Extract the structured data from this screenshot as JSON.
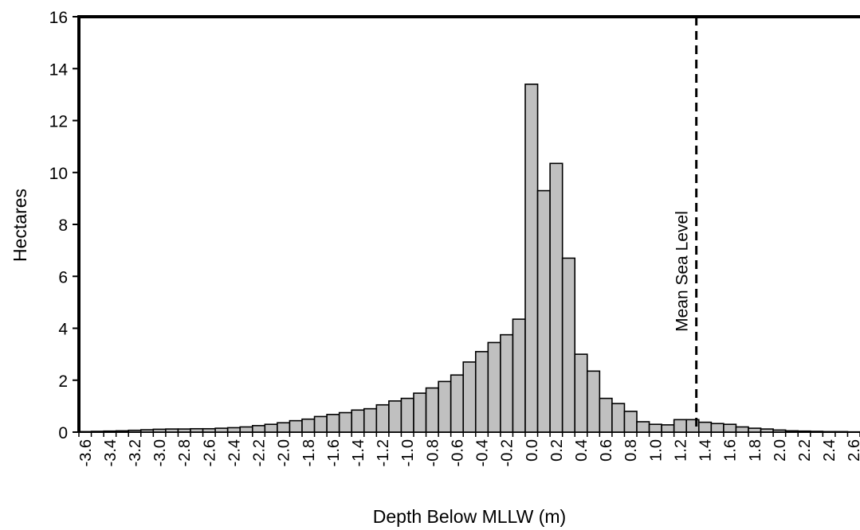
{
  "chart_data": {
    "type": "bar",
    "title": "",
    "xlabel": "Depth Below MLLW (m)",
    "ylabel": "Hectares",
    "ylim": [
      0,
      16
    ],
    "yticks": [
      0,
      2,
      4,
      6,
      8,
      10,
      12,
      14,
      16
    ],
    "grid": false,
    "bar_color": "#c0c0c0",
    "categories": [
      -3.6,
      -3.5,
      -3.4,
      -3.3,
      -3.2,
      -3.1,
      -3.0,
      -2.9,
      -2.8,
      -2.7,
      -2.6,
      -2.5,
      -2.4,
      -2.3,
      -2.2,
      -2.1,
      -2.0,
      -1.9,
      -1.8,
      -1.7,
      -1.6,
      -1.5,
      -1.4,
      -1.3,
      -1.2,
      -1.1,
      -1.0,
      -0.9,
      -0.8,
      -0.7,
      -0.6,
      -0.5,
      -0.4,
      -0.3,
      -0.2,
      -0.1,
      0.0,
      0.1,
      0.2,
      0.3,
      0.4,
      0.5,
      0.6,
      0.7,
      0.8,
      0.9,
      1.0,
      1.1,
      1.2,
      1.3,
      1.4,
      1.5,
      1.6,
      1.7,
      1.8,
      1.9,
      2.0,
      2.1,
      2.2,
      2.3,
      2.4,
      2.5,
      2.6
    ],
    "values": [
      0.02,
      0.03,
      0.04,
      0.05,
      0.07,
      0.09,
      0.11,
      0.12,
      0.12,
      0.13,
      0.13,
      0.15,
      0.17,
      0.2,
      0.25,
      0.3,
      0.36,
      0.44,
      0.5,
      0.6,
      0.68,
      0.75,
      0.85,
      0.9,
      1.05,
      1.2,
      1.3,
      1.5,
      1.7,
      1.95,
      2.2,
      2.7,
      3.1,
      3.45,
      3.75,
      4.35,
      13.4,
      9.3,
      10.35,
      6.7,
      3.0,
      2.35,
      1.3,
      1.1,
      0.8,
      0.4,
      0.3,
      0.28,
      0.48,
      0.48,
      0.38,
      0.33,
      0.3,
      0.2,
      0.15,
      0.12,
      0.08,
      0.05,
      0.04,
      0.03,
      0.02,
      0.02,
      0.01
    ],
    "xtick_labels": [
      "-3.6",
      "-3.4",
      "-3.2",
      "-3.0",
      "-2.8",
      "-2.6",
      "-2.4",
      "-2.2",
      "-2.0",
      "-1.8",
      "-1.6",
      "-1.4",
      "-1.2",
      "-1.0",
      "-0.8",
      "-0.6",
      "-0.4",
      "-0.2",
      "0.0",
      "0.2",
      "0.4",
      "0.6",
      "0.8",
      "1.0",
      "1.2",
      "1.4",
      "1.6",
      "1.8",
      "2.0",
      "2.2",
      "2.4",
      "2.6"
    ],
    "annotations": [
      {
        "label": "Mean Sea Level",
        "x": 1.33,
        "style": "dashed-vertical-line"
      }
    ]
  }
}
